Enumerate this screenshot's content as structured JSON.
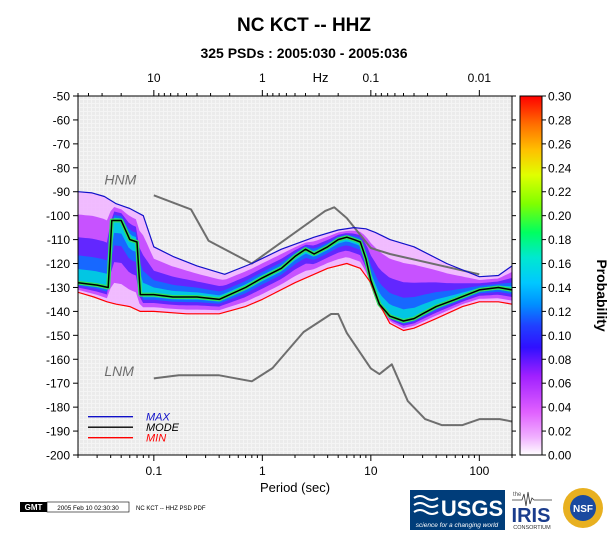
{
  "chart_data": {
    "type": "heatmap",
    "title": "NC KCT -- HHZ",
    "subtitle": "325 PSDs : 2005:030 - 2005:036",
    "xlabel": "Period (sec)",
    "top_axis_unit": "Hz",
    "colorbar_label": "Probability",
    "x_scale": "log",
    "xlim": [
      0.02,
      200
    ],
    "ylim": [
      -200,
      -50
    ],
    "period_ticks": [
      {
        "value": 0.1,
        "label": "0.1"
      },
      {
        "value": 1,
        "label": "1"
      },
      {
        "value": 10,
        "label": "10"
      },
      {
        "value": 100,
        "label": "100"
      }
    ],
    "freq_ticks": [
      {
        "value": 10,
        "label": "10"
      },
      {
        "value": 1,
        "label": "1"
      },
      {
        "value": 0.1,
        "label": "0.1"
      },
      {
        "value": 0.01,
        "label": "0.01"
      }
    ],
    "y_ticks": [
      -50,
      -60,
      -70,
      -80,
      -90,
      -100,
      -110,
      -120,
      -130,
      -140,
      -150,
      -160,
      -170,
      -180,
      -190,
      -200
    ],
    "colorbar_ticks": [
      "0.00",
      "0.02",
      "0.04",
      "0.06",
      "0.08",
      "0.10",
      "0.12",
      "0.14",
      "0.16",
      "0.18",
      "0.20",
      "0.22",
      "0.24",
      "0.26",
      "0.28",
      "0.30"
    ],
    "colorbar_range": [
      0,
      0.3
    ],
    "legend": [
      {
        "name": "MAX",
        "color": "#1010c8"
      },
      {
        "name": "MODE",
        "color": "#000000"
      },
      {
        "name": "MIN",
        "color": "#ff0000"
      }
    ],
    "reference_models": [
      {
        "name": "HNM",
        "label": "HNM"
      },
      {
        "name": "LNM",
        "label": "LNM"
      }
    ],
    "series": [
      {
        "name": "HNM",
        "x": [
          0.1,
          0.22,
          0.32,
          0.8,
          3.8,
          4.6,
          6,
          10,
          15,
          100
        ],
        "y": [
          -91.5,
          -97.4,
          -110.5,
          -120,
          -98,
          -96.5,
          -101,
          -113.5,
          -116,
          -124.5
        ]
      },
      {
        "name": "LNM",
        "x": [
          0.1,
          0.17,
          0.4,
          0.8,
          1.24,
          2.4,
          4.3,
          5,
          6,
          10,
          12,
          15.6,
          21.9,
          31.6,
          45,
          70,
          101,
          154,
          200
        ],
        "y": [
          -168,
          -166.7,
          -166.7,
          -169.2,
          -163.7,
          -148.6,
          -141.1,
          -141.1,
          -149,
          -163.8,
          -166.2,
          -162.1,
          -177.5,
          -185,
          -187.5,
          -187.5,
          -185,
          -185,
          -186
        ]
      },
      {
        "name": "MAX",
        "x": [
          0.02,
          0.027,
          0.035,
          0.045,
          0.06,
          0.08,
          0.1,
          0.15,
          0.25,
          0.45,
          0.8,
          1.5,
          3,
          5,
          7,
          9,
          11,
          15,
          25,
          50,
          100,
          150,
          200
        ],
        "y": [
          -90,
          -90.5,
          -92,
          -95,
          -97,
          -100,
          -113,
          -117,
          -121,
          -124.5,
          -120,
          -114,
          -109,
          -106,
          -105,
          -105.5,
          -107,
          -110,
          -113,
          -120,
          -125.5,
          -125,
          -121
        ]
      },
      {
        "name": "MODE",
        "x": [
          0.02,
          0.03,
          0.038,
          0.041,
          0.05,
          0.06,
          0.07,
          0.075,
          0.1,
          0.15,
          0.25,
          0.4,
          0.7,
          1,
          1.5,
          2,
          2.5,
          3,
          4,
          5,
          6,
          7,
          8,
          9,
          10,
          12,
          15,
          20,
          25,
          30,
          40,
          60,
          100,
          150,
          200
        ],
        "y": [
          -128,
          -129,
          -130,
          -102,
          -102,
          -110,
          -111,
          -133,
          -133,
          -134,
          -134,
          -135,
          -130,
          -126,
          -122,
          -117,
          -114,
          -116,
          -113,
          -110,
          -109,
          -110,
          -111,
          -118,
          -127,
          -137,
          -142,
          -144,
          -143,
          -141,
          -138,
          -135,
          -131,
          -130,
          -131
        ]
      },
      {
        "name": "MIN",
        "x": [
          0.02,
          0.028,
          0.037,
          0.045,
          0.06,
          0.075,
          0.1,
          0.2,
          0.4,
          0.7,
          1,
          2,
          4,
          6,
          8,
          10,
          12,
          15,
          20,
          25,
          40,
          70,
          100,
          150,
          200
        ],
        "y": [
          -132,
          -134,
          -136,
          -137,
          -138,
          -140,
          -140,
          -141,
          -141,
          -138,
          -135,
          -128,
          -122,
          -120,
          -122,
          -128,
          -137,
          -145,
          -148,
          -147,
          -143,
          -138,
          -136,
          -136,
          -137
        ]
      }
    ]
  },
  "footer": {
    "logo": "GMT",
    "timestamp": "2005 Feb 10 02:30:30",
    "caption": "NC KCT -- HHZ PSD PDF"
  },
  "logos": {
    "usgs": "USGS",
    "usgs_tagline": "science for a changing world",
    "iris": "IRIS",
    "iris_the": "the",
    "iris_sub": "CONSORTIUM",
    "nsf": "NSF"
  },
  "colors": {
    "hnm_lnm": "#6e6e6e",
    "max": "#1010c8",
    "mode": "#000000",
    "min": "#ff0000",
    "mode_glow": "#30e060",
    "background_grid": "#e0e0e0"
  }
}
